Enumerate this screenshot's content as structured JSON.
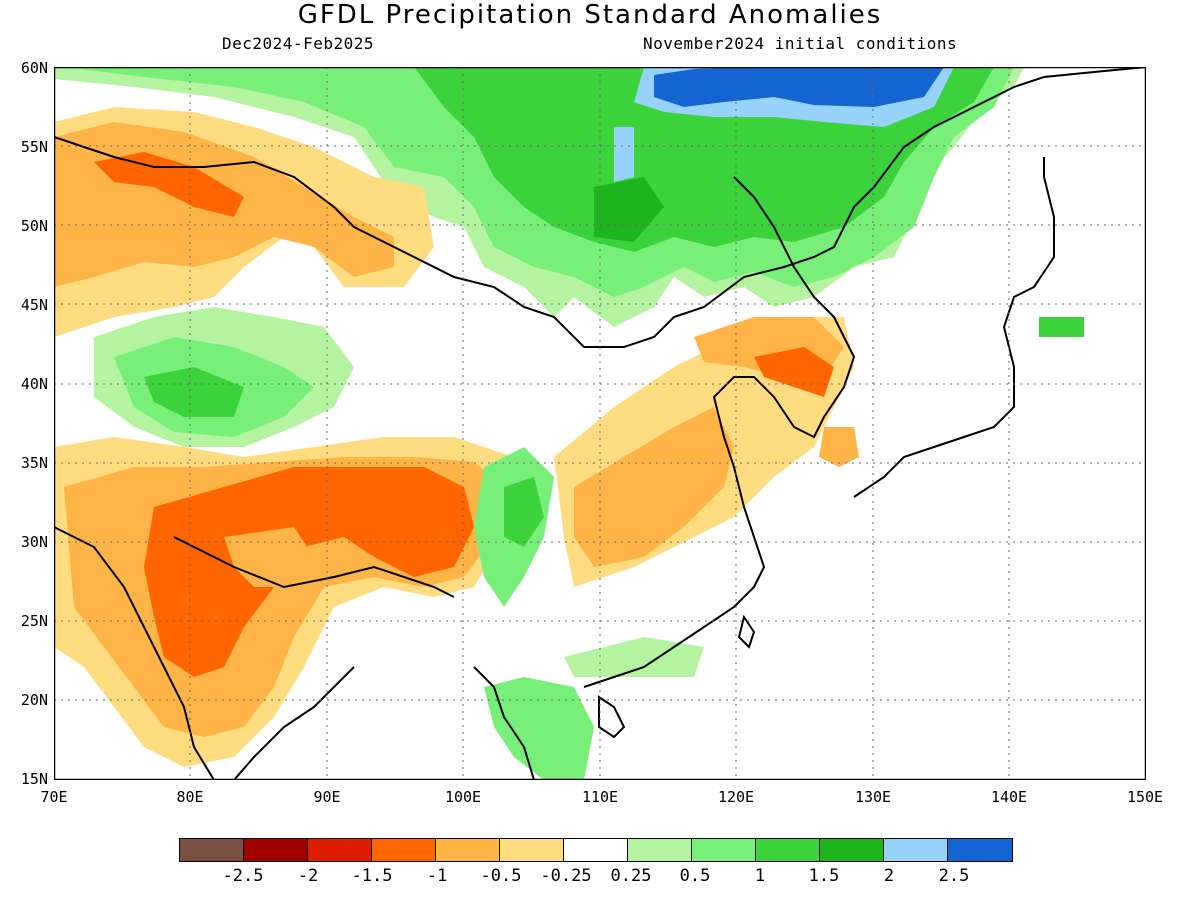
{
  "header": {
    "title": "GFDL Precipitation Standard Anomalies",
    "period": "Dec2024-Feb2025",
    "init": "November2024 initial conditions"
  },
  "axes": {
    "lat_labels": [
      "60N",
      "55N",
      "50N",
      "45N",
      "40N",
      "35N",
      "30N",
      "25N",
      "20N",
      "15N"
    ],
    "lon_labels": [
      "70E",
      "80E",
      "90E",
      "100E",
      "110E",
      "120E",
      "130E",
      "140E",
      "150E"
    ],
    "lat_range": [
      15,
      60
    ],
    "lon_range": [
      70,
      150
    ],
    "grid": true
  },
  "colorbar": {
    "colors": [
      "#7a5045",
      "#a00000",
      "#dd1c00",
      "#ff6600",
      "#ffb447",
      "#ffdc80",
      "#ffffff",
      "#b4f4a0",
      "#78ef78",
      "#3cd23c",
      "#1eb41e",
      "#96d2fa",
      "#1464d2"
    ],
    "labels": [
      "-2.5",
      "-2",
      "-1.5",
      "-1",
      "-0.5",
      "-0.25",
      "0.25",
      "0.5",
      "1",
      "1.5",
      "2",
      "2.5"
    ]
  }
}
